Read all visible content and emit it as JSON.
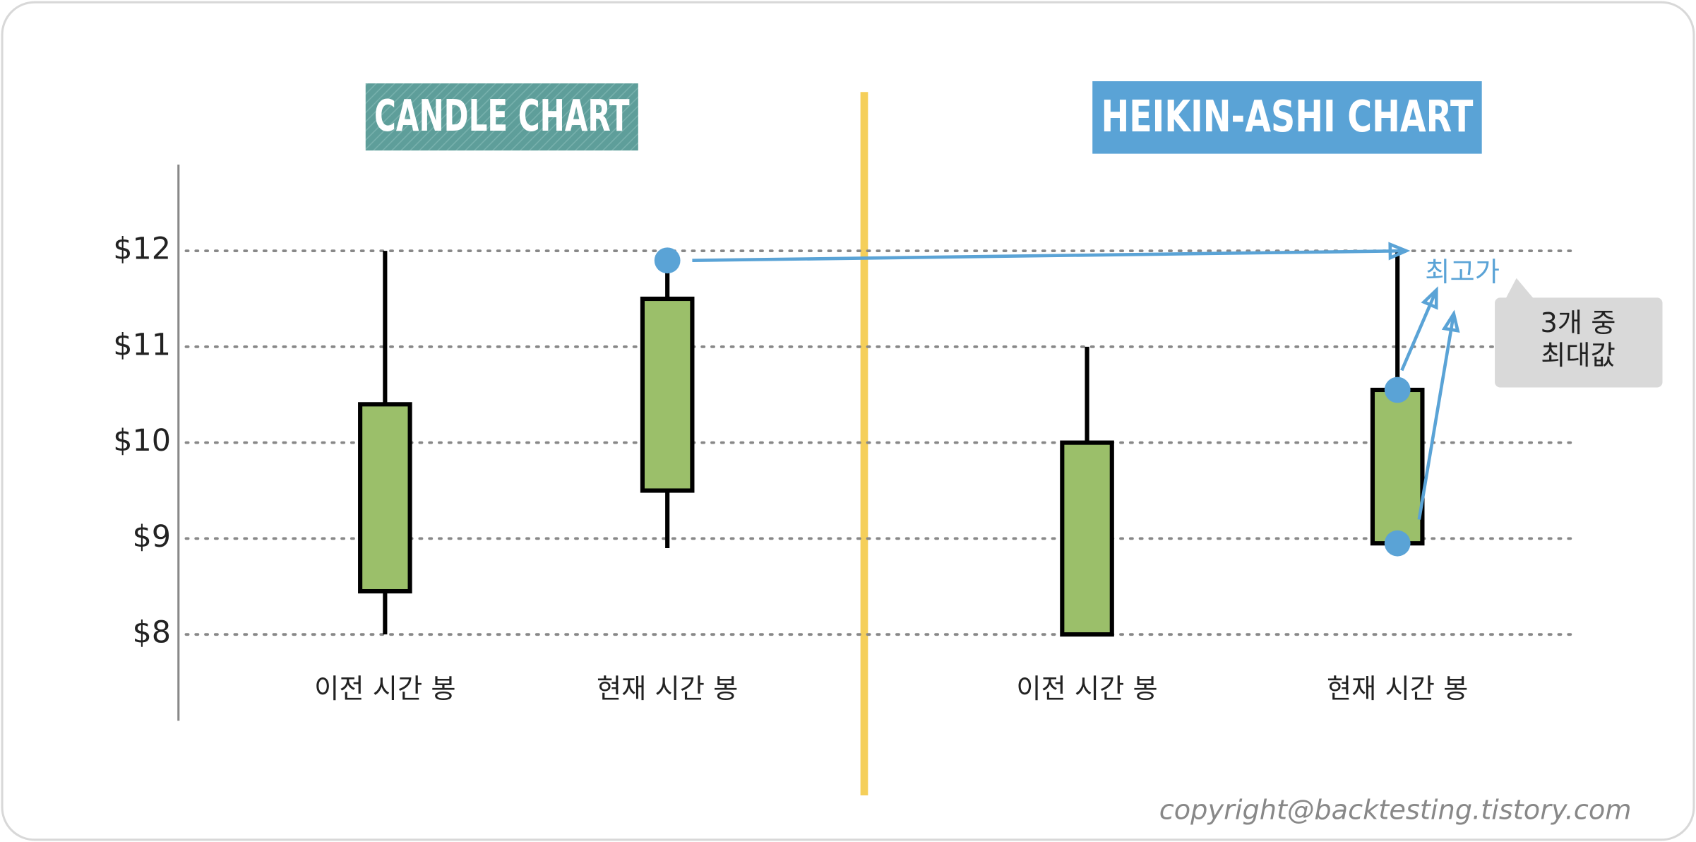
{
  "chart_data": {
    "type": "candlestick",
    "ylim": [
      7.1,
      12.9
    ],
    "yticks": [
      {
        "value": 8,
        "label": "$8"
      },
      {
        "value": 9,
        "label": "$9"
      },
      {
        "value": 10,
        "label": "$10"
      },
      {
        "value": 11,
        "label": "$11"
      },
      {
        "value": 12,
        "label": "$12"
      }
    ],
    "grid": true,
    "color": "#9bbf6a",
    "panels": [
      {
        "title": "CANDLE CHART",
        "categories": [
          "이전 시간 봉",
          "현재 시간 봉"
        ],
        "open": [
          8.45,
          9.5
        ],
        "high": [
          12,
          11.9
        ],
        "low": [
          8,
          8.9
        ],
        "close": [
          10.4,
          11.5
        ]
      },
      {
        "title": "HEIKIN-ASHI CHART",
        "categories": [
          "이전 시간 봉",
          "현재 시간 봉"
        ],
        "open": [
          8,
          8.95
        ],
        "high": [
          11,
          12
        ],
        "low": [
          8,
          8.95
        ],
        "close": [
          10,
          10.55
        ]
      }
    ],
    "annotations": {
      "highest_label": "최고가",
      "callout": [
        "3개 중",
        "최대값"
      ]
    }
  },
  "copyright": "copyright@backtesting.tistory.com"
}
